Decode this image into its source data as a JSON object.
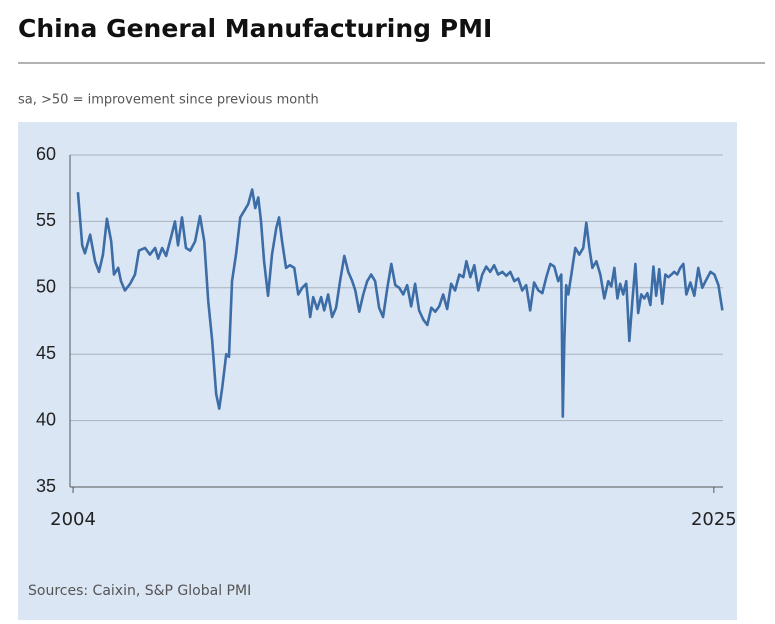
{
  "chart_data": {
    "type": "line",
    "title": "China General Manufacturing PMI",
    "subtitle": "sa, >50 = improvement since previous month",
    "source": "Sources: Caixin, S&P Global PMI",
    "color": "#3d6da6",
    "grid": true,
    "xlim": [
      2003.9,
      2025.3
    ],
    "xticks": [
      2004,
      2025
    ],
    "ylim": [
      35,
      60
    ],
    "yticks": [
      35,
      40,
      45,
      50,
      55,
      60
    ],
    "x": [
      2004.16,
      2004.3,
      2004.39,
      2004.56,
      2004.72,
      2004.85,
      2004.98,
      2005.11,
      2005.25,
      2005.34,
      2005.48,
      2005.57,
      2005.7,
      2005.87,
      2006.03,
      2006.16,
      2006.36,
      2006.52,
      2006.69,
      2006.79,
      2006.92,
      2007.05,
      2007.21,
      2007.34,
      2007.44,
      2007.57,
      2007.7,
      2007.84,
      2008.0,
      2008.16,
      2008.3,
      2008.43,
      2008.56,
      2008.69,
      2008.79,
      2008.89,
      2009.02,
      2009.11,
      2009.21,
      2009.34,
      2009.48,
      2009.61,
      2009.74,
      2009.87,
      2009.97,
      2010.07,
      2010.16,
      2010.26,
      2010.39,
      2010.52,
      2010.66,
      2010.75,
      2010.85,
      2010.98,
      2011.11,
      2011.25,
      2011.38,
      2011.51,
      2011.64,
      2011.77,
      2011.87,
      2012.0,
      2012.13,
      2012.23,
      2012.36,
      2012.49,
      2012.62,
      2012.75,
      2012.89,
      2013.02,
      2013.15,
      2013.25,
      2013.38,
      2013.51,
      2013.64,
      2013.77,
      2013.9,
      2014.03,
      2014.16,
      2014.3,
      2014.43,
      2014.56,
      2014.69,
      2014.82,
      2014.95,
      2015.08,
      2015.21,
      2015.34,
      2015.48,
      2015.61,
      2015.74,
      2015.87,
      2016.0,
      2016.13,
      2016.26,
      2016.39,
      2016.52,
      2016.66,
      2016.79,
      2016.89,
      2017.02,
      2017.15,
      2017.28,
      2017.41,
      2017.54,
      2017.67,
      2017.8,
      2017.93,
      2018.07,
      2018.2,
      2018.33,
      2018.46,
      2018.59,
      2018.72,
      2018.85,
      2018.98,
      2019.11,
      2019.25,
      2019.38,
      2019.51,
      2019.64,
      2019.77,
      2019.9,
      2020.0,
      2020.05,
      2020.1,
      2020.16,
      2020.23,
      2020.33,
      2020.46,
      2020.59,
      2020.72,
      2020.82,
      2020.92,
      2021.02,
      2021.15,
      2021.28,
      2021.41,
      2021.54,
      2021.64,
      2021.74,
      2021.84,
      2021.93,
      2022.03,
      2022.13,
      2022.23,
      2022.33,
      2022.43,
      2022.52,
      2022.62,
      2022.72,
      2022.82,
      2022.92,
      2023.02,
      2023.11,
      2023.21,
      2023.31,
      2023.41,
      2023.51,
      2023.61,
      2023.7,
      2023.8,
      2023.9,
      2024.0,
      2024.1,
      2024.23,
      2024.36,
      2024.49,
      2024.62,
      2024.75,
      2024.89,
      2025.02,
      2025.15,
      2025.28
    ],
    "values": [
      57.2,
      53.2,
      52.6,
      54.0,
      52.0,
      51.2,
      52.5,
      55.2,
      53.5,
      51.0,
      51.5,
      50.5,
      49.8,
      50.3,
      51.0,
      52.8,
      53.0,
      52.5,
      53.0,
      52.2,
      53.0,
      52.4,
      53.8,
      55.0,
      53.2,
      55.3,
      53.0,
      52.8,
      53.5,
      55.4,
      53.5,
      49.0,
      46.0,
      42.0,
      40.9,
      42.5,
      45.0,
      44.8,
      50.5,
      52.5,
      55.3,
      55.8,
      56.3,
      57.4,
      56.0,
      56.8,
      55.0,
      52.0,
      49.4,
      52.5,
      54.5,
      55.3,
      53.5,
      51.5,
      51.7,
      51.5,
      49.5,
      50.0,
      50.3,
      47.8,
      49.3,
      48.4,
      49.3,
      48.3,
      49.5,
      47.8,
      48.5,
      50.5,
      52.4,
      51.2,
      50.5,
      49.8,
      48.2,
      49.5,
      50.5,
      51.0,
      50.5,
      48.5,
      47.8,
      50.0,
      51.8,
      50.2,
      50.0,
      49.5,
      50.2,
      48.6,
      50.3,
      48.3,
      47.6,
      47.2,
      48.5,
      48.2,
      48.6,
      49.5,
      48.4,
      50.3,
      49.8,
      51.0,
      50.8,
      52.0,
      50.8,
      51.7,
      49.8,
      51.0,
      51.6,
      51.2,
      51.7,
      51.0,
      51.2,
      50.9,
      51.2,
      50.5,
      50.7,
      49.8,
      50.2,
      48.3,
      50.4,
      49.8,
      49.6,
      50.8,
      51.8,
      51.6,
      50.5,
      51.0,
      40.3,
      46.0,
      50.2,
      49.5,
      51.0,
      53.0,
      52.5,
      53.0,
      54.9,
      53.0,
      51.5,
      52.0,
      51.0,
      49.2,
      50.5,
      50.1,
      51.5,
      49.2,
      50.3,
      49.5,
      50.5,
      46.0,
      49.0,
      51.8,
      48.1,
      49.5,
      49.2,
      49.6,
      48.7,
      51.6,
      49.4,
      51.4,
      48.8,
      51.0,
      50.8,
      51.0,
      51.2,
      51.0,
      51.5,
      51.8,
      49.5,
      50.4,
      49.4,
      51.5,
      50.0,
      50.6,
      51.2,
      51.0,
      50.2,
      48.3
    ]
  }
}
